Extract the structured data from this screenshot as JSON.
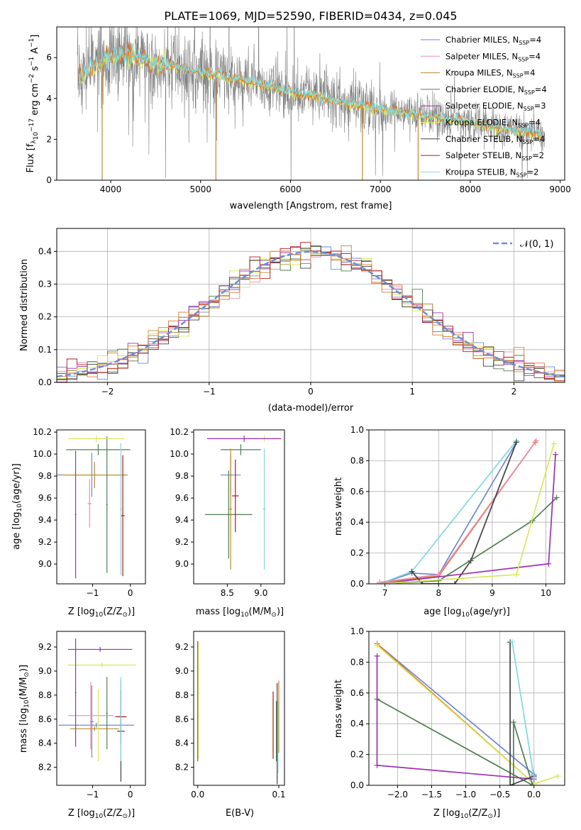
{
  "title": "PLATE=1069, MJD=52590, FIBERID=0434, z=0.045",
  "colors": {
    "chabrier_miles": "#6f86d6",
    "salpeter_miles": "#e88fb0",
    "kroupa_miles": "#c08a2a",
    "chabrier_elodie": "#4f7f50",
    "salpeter_elodie": "#9a30b0",
    "kroupa_elodie": "#d8e85a",
    "chabrier_stelib": "#404040",
    "salpeter_stelib": "#b01818",
    "kroupa_stelib": "#80d8e0",
    "data": "#808080",
    "model_orange": "#e07a30",
    "normal": "#6c8fd8"
  },
  "chart_data": [
    {
      "id": "spectrum",
      "type": "line",
      "xlabel": "wavelength [Angstrom, rest frame]",
      "ylabel": "Flux [f",
      "ylabel_parts": [
        "Flux [f",
        "λ",
        "10",
        "−17",
        " erg cm",
        "−2",
        " s",
        "−1",
        " A",
        "−1",
        "]"
      ],
      "xlim": [
        3400,
        9050
      ],
      "ylim": [
        0,
        7.5
      ],
      "xticks": [
        4000,
        5000,
        6000,
        7000,
        8000,
        9000
      ],
      "yticks": [
        0,
        2,
        4,
        6
      ],
      "continuum": {
        "x": [
          3650,
          3800,
          4000,
          4200,
          4500,
          5000,
          5500,
          6000,
          6500,
          7000,
          7500,
          8000,
          8500,
          8800
        ],
        "y": [
          5.1,
          5.6,
          6.1,
          6.05,
          5.75,
          5.3,
          4.85,
          4.35,
          3.9,
          3.5,
          3.15,
          2.8,
          2.45,
          2.25
        ]
      },
      "legend": [
        {
          "label": "Chabrier MILES, N",
          "sub": "SSP",
          "n": "=4",
          "color": "#6f86d6"
        },
        {
          "label": "Salpeter MILES, N",
          "sub": "SSP",
          "n": "=4",
          "color": "#e88fb0"
        },
        {
          "label": "Kroupa MILES, N",
          "sub": "SSP",
          "n": "=4",
          "color": "#c08a2a"
        },
        {
          "label": "Chabrier ELODIE, N",
          "sub": "SSP",
          "n": "=4",
          "color": "#4f7f50"
        },
        {
          "label": "Salpeter ELODIE, N",
          "sub": "SSP",
          "n": "=3",
          "color": "#9a30b0"
        },
        {
          "label": "Kroupa ELODIE, N",
          "sub": "SSP",
          "n": "=4",
          "color": "#d8e85a"
        },
        {
          "label": "Chabrier STELIB, N",
          "sub": "SSP",
          "n": "=4",
          "color": "#404040"
        },
        {
          "label": "Salpeter STELIB, N",
          "sub": "SSP",
          "n": "=2",
          "color": "#b01818"
        },
        {
          "label": "Kroupa STELIB, N",
          "sub": "SSP",
          "n": "=2",
          "color": "#80d8e0"
        }
      ]
    },
    {
      "id": "residuals",
      "type": "line",
      "xlabel": "(data-model)/error",
      "ylabel": "Normed distribution",
      "xlim": [
        -2.5,
        2.5
      ],
      "ylim": [
        0,
        0.47
      ],
      "xticks": [
        -2,
        -1,
        0,
        1,
        2
      ],
      "yticks": [
        0.0,
        0.1,
        0.2,
        0.3,
        0.4
      ],
      "grid": true,
      "legend": "𝒩(0, 1)"
    },
    {
      "id": "age_vs_z",
      "type": "scatter",
      "xlabel": "Z [log",
      "xlabel_parts": [
        "Z [log",
        "10",
        "(Z/Z",
        "⊙",
        ")]"
      ],
      "ylabel_parts": [
        "age  [log",
        "10",
        "(age/yr)]"
      ],
      "xlim": [
        -1.95,
        0.4
      ],
      "ylim": [
        8.82,
        10.22
      ],
      "xticks": [
        -1,
        0
      ],
      "yticks": [
        9.0,
        9.2,
        9.4,
        9.6,
        9.8,
        10.0,
        10.2
      ],
      "points": [
        {
          "x": -1.02,
          "y": 9.81,
          "xerr": 0.95,
          "yerr": 0.2,
          "color": "#6f86d6"
        },
        {
          "x": -1.08,
          "y": 9.55,
          "xerr": 0.05,
          "yerr": 0.22,
          "color": "#e88fb0"
        },
        {
          "x": -0.95,
          "y": 9.81,
          "xerr": 0.85,
          "yerr": 0.12,
          "color": "#c08a2a"
        },
        {
          "x": -0.62,
          "y": 9.54,
          "xerr": 0.02,
          "yerr": 0.62,
          "color": "#4f7f50"
        },
        {
          "x": -0.85,
          "y": 10.04,
          "xerr": 0.85,
          "yerr": 0.05,
          "color": "#4f7f50"
        },
        {
          "x": -0.2,
          "y": 9.44,
          "xerr": 0.05,
          "yerr": 0.55,
          "color": "#b01818"
        },
        {
          "x": -0.9,
          "y": 10.14,
          "xerr": 0.75,
          "yerr": 0.03,
          "color": "#d8e85a"
        },
        {
          "x": -0.25,
          "y": 9.5,
          "xerr": 0.02,
          "yerr": 0.6,
          "color": "#80d8e0"
        },
        {
          "x": -1.45,
          "y": 9.45,
          "xerr": 0.02,
          "yerr": 0.58,
          "color": "#9a30b0"
        }
      ]
    },
    {
      "id": "age_vs_mass",
      "type": "scatter",
      "xlabel_parts": [
        "mass [log",
        "10",
        "(M/M",
        "⊙",
        ")]"
      ],
      "xlim": [
        8.0,
        9.35
      ],
      "ylim": [
        8.82,
        10.22
      ],
      "xticks": [
        8.5,
        9.0
      ],
      "yticks": [
        9.0,
        9.2,
        9.4,
        9.6,
        9.8,
        10.0,
        10.2
      ],
      "points": [
        {
          "x": 8.55,
          "y": 9.81,
          "xerr": 0.15,
          "yerr": 0.18,
          "color": "#6f86d6"
        },
        {
          "x": 8.52,
          "y": 9.45,
          "xerr": 0.35,
          "yerr": 0.4,
          "color": "#4f7f50"
        },
        {
          "x": 8.62,
          "y": 9.62,
          "xerr": 0.05,
          "yerr": 0.33,
          "color": "#b01818"
        },
        {
          "x": 9.05,
          "y": 10.14,
          "xerr": 0.25,
          "yerr": 0.03,
          "color": "#d8e85a"
        },
        {
          "x": 8.75,
          "y": 10.14,
          "xerr": 0.55,
          "yerr": 0.03,
          "color": "#9a30b0"
        },
        {
          "x": 8.7,
          "y": 10.04,
          "xerr": 0.3,
          "yerr": 0.05,
          "color": "#4f7f50"
        },
        {
          "x": 9.05,
          "y": 9.5,
          "xerr": 0.02,
          "yerr": 0.55,
          "color": "#80d8e0"
        },
        {
          "x": 8.55,
          "y": 9.5,
          "xerr": 0.02,
          "yerr": 0.55,
          "color": "#c08a2a"
        }
      ]
    },
    {
      "id": "massweight_vs_age",
      "type": "line",
      "xlabel_parts": [
        "age  [log",
        "10",
        "(age/yr)]"
      ],
      "ylabel": "mass weight",
      "xlim": [
        6.7,
        10.35
      ],
      "ylim": [
        0,
        1.0
      ],
      "xticks": [
        7,
        8,
        9,
        10
      ],
      "yticks": [
        0.0,
        0.2,
        0.4,
        0.6,
        0.8,
        1.0
      ],
      "grid": true,
      "series": [
        {
          "color": "#6f86d6",
          "x": [
            6.9,
            7.5,
            8.0,
            9.45
          ],
          "y": [
            0.0,
            0.07,
            0.06,
            0.92
          ]
        },
        {
          "color": "#80d8e0",
          "x": [
            6.9,
            7.5,
            9.45
          ],
          "y": [
            0.0,
            0.08,
            0.93
          ]
        },
        {
          "color": "#e07a30",
          "x": [
            6.9,
            8.0,
            9.8
          ],
          "y": [
            0.01,
            0.05,
            0.92
          ]
        },
        {
          "color": "#e88fb0",
          "x": [
            6.9,
            8.0,
            9.82
          ],
          "y": [
            0.01,
            0.06,
            0.93
          ]
        },
        {
          "color": "#404040",
          "x": [
            7.5,
            7.7,
            8.0,
            8.3,
            8.6,
            9.45
          ],
          "y": [
            0.08,
            0.0,
            0.0,
            0.0,
            0.15,
            0.92
          ]
        },
        {
          "color": "#4f7f50",
          "x": [
            6.9,
            8.0,
            9.75,
            10.2
          ],
          "y": [
            0.0,
            0.02,
            0.41,
            0.56
          ]
        },
        {
          "color": "#9a30b0",
          "x": [
            6.9,
            10.05,
            10.18
          ],
          "y": [
            0.0,
            0.13,
            0.84
          ]
        },
        {
          "color": "#d8e85a",
          "x": [
            6.9,
            9.45,
            10.15
          ],
          "y": [
            0.0,
            0.06,
            0.91
          ]
        }
      ]
    },
    {
      "id": "mass_vs_z",
      "type": "scatter",
      "ylabel_parts": [
        "mass [log",
        "10",
        "(M/M",
        "⊙",
        ")]"
      ],
      "xlabel_parts": [
        "Z [log",
        "10",
        "(Z/Z",
        "⊙",
        ")]"
      ],
      "xlim": [
        -1.95,
        0.4
      ],
      "ylim": [
        8.05,
        9.33
      ],
      "xticks": [
        -1,
        0
      ],
      "yticks": [
        8.2,
        8.4,
        8.6,
        8.8,
        9.0,
        9.2
      ],
      "points": [
        {
          "x": -0.9,
          "y": 8.55,
          "xerr": 1.0,
          "yerr": 0.02,
          "color": "#6f86d6"
        },
        {
          "x": -1.02,
          "y": 8.58,
          "xerr": 0.05,
          "yerr": 0.3,
          "color": "#6f86d6"
        },
        {
          "x": -1.05,
          "y": 8.63,
          "xerr": 0.6,
          "yerr": 0.28,
          "color": "#e88fb0"
        },
        {
          "x": -0.95,
          "y": 8.52,
          "xerr": 0.65,
          "yerr": 0.02,
          "color": "#c08a2a"
        },
        {
          "x": -0.75,
          "y": 9.05,
          "xerr": 0.9,
          "yerr": 0.02,
          "color": "#d8e85a"
        },
        {
          "x": -0.8,
          "y": 9.18,
          "xerr": 0.85,
          "yerr": 0.02,
          "color": "#9a30b0"
        },
        {
          "x": -1.45,
          "y": 8.82,
          "xerr": 0.02,
          "yerr": 0.45,
          "color": "#9a30b0"
        },
        {
          "x": -0.62,
          "y": 8.65,
          "xerr": 0.02,
          "yerr": 0.3,
          "color": "#4f7f50"
        },
        {
          "x": -0.25,
          "y": 8.62,
          "xerr": 0.15,
          "yerr": 0.22,
          "color": "#b01818"
        },
        {
          "x": -0.25,
          "y": 8.5,
          "xerr": 0.1,
          "yerr": 0.42,
          "color": "#404040"
        },
        {
          "x": -0.25,
          "y": 8.6,
          "xerr": 0.02,
          "yerr": 0.35,
          "color": "#80d8e0"
        },
        {
          "x": -0.85,
          "y": 8.55,
          "xerr": 0.02,
          "yerr": 0.3,
          "color": "#d8e85a"
        }
      ]
    },
    {
      "id": "mass_vs_ebv",
      "type": "scatter",
      "xlabel": "E(B-V)",
      "xlim": [
        -0.005,
        0.107
      ],
      "ylim": [
        8.05,
        9.33
      ],
      "xticks": [
        0.0,
        0.1
      ],
      "yticks": [
        8.2,
        8.4,
        8.6,
        8.8,
        9.0,
        9.2
      ],
      "points": [
        {
          "x": 0.0,
          "y": 8.75,
          "xerr": 0.0,
          "yerr": 0.5,
          "color": "#9a30b0"
        },
        {
          "x": 0.001,
          "y": 8.75,
          "xerr": 0.0,
          "yerr": 0.48,
          "color": "#d8e85a"
        },
        {
          "x": 0.093,
          "y": 8.55,
          "xerr": 0.0,
          "yerr": 0.28,
          "color": "#b01818"
        },
        {
          "x": 0.098,
          "y": 8.48,
          "xerr": 0.0,
          "yerr": 0.42,
          "color": "#404040"
        },
        {
          "x": 0.1,
          "y": 8.62,
          "xerr": 0.0,
          "yerr": 0.3,
          "color": "#e07a30"
        },
        {
          "x": 0.099,
          "y": 8.45,
          "xerr": 0.0,
          "yerr": 0.3,
          "color": "#80d8e0"
        },
        {
          "x": 0.097,
          "y": 8.5,
          "xerr": 0.0,
          "yerr": 0.25,
          "color": "#4f7f50"
        }
      ]
    },
    {
      "id": "massweight_vs_z",
      "type": "line",
      "xlabel_parts": [
        "Z [log",
        "10",
        "(Z/Z",
        "⊙",
        ")]"
      ],
      "ylabel": "mass weight",
      "xlim": [
        -2.42,
        0.45
      ],
      "ylim": [
        0,
        1.0
      ],
      "xticks": [
        -2.0,
        -1.5,
        -1.0,
        -0.5,
        0.0
      ],
      "yticks": [
        0.0,
        0.2,
        0.4,
        0.6,
        0.8,
        1.0
      ],
      "grid": true,
      "series": [
        {
          "color": "#6f86d6",
          "x": [
            -2.3,
            0.0
          ],
          "y": [
            0.92,
            0.07
          ]
        },
        {
          "color": "#e07a30",
          "x": [
            -2.3,
            0.0
          ],
          "y": [
            0.92,
            0.01
          ]
        },
        {
          "color": "#d8e85a",
          "x": [
            -2.3,
            0.0,
            0.35
          ],
          "y": [
            0.91,
            0.01,
            0.06
          ]
        },
        {
          "color": "#4f7f50",
          "x": [
            -2.3,
            -0.02,
            -0.3,
            -0.3
          ],
          "y": [
            0.56,
            0.0,
            0.41,
            0.0
          ]
        },
        {
          "color": "#9a30b0",
          "x": [
            -2.3,
            -2.3,
            0.0
          ],
          "y": [
            0.84,
            0.13,
            0.04
          ]
        },
        {
          "color": "#404040",
          "x": [
            -0.35,
            -0.35,
            0.0
          ],
          "y": [
            0.93,
            0.0,
            0.06
          ]
        },
        {
          "color": "#80d8e0",
          "x": [
            -0.32,
            0.0
          ],
          "y": [
            0.93,
            0.05
          ]
        }
      ]
    }
  ]
}
